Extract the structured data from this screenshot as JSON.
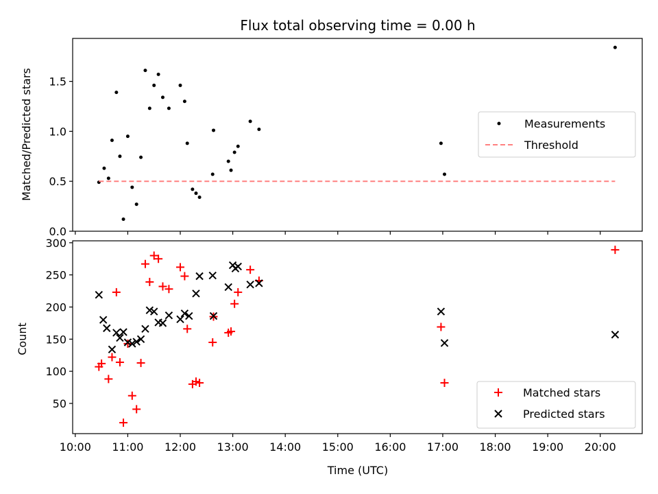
{
  "chart_data": [
    {
      "type": "scatter",
      "title": "Flux total observing time = 0.00 h",
      "ylabel": "Matched/Predicted stars",
      "xlabel": "",
      "ylim": [
        0,
        1.93
      ],
      "xlim": [
        "09:57",
        "20:48"
      ],
      "yticks": [
        0.0,
        0.5,
        1.0,
        1.5
      ],
      "ytick_labels": [
        "0.0",
        "0.5",
        "1.0",
        "1.5"
      ],
      "grid": false,
      "legend_position": "center-right",
      "series": [
        {
          "name": "Measurements",
          "color": "#000000",
          "marker": "dot",
          "points": [
            [
              "10:27",
              0.49
            ],
            [
              "10:33",
              0.63
            ],
            [
              "10:38",
              0.53
            ],
            [
              "10:42",
              0.91
            ],
            [
              "10:47",
              1.39
            ],
            [
              "10:51",
              0.75
            ],
            [
              "10:55",
              0.12
            ],
            [
              "11:00",
              0.95
            ],
            [
              "11:05",
              0.44
            ],
            [
              "11:10",
              0.27
            ],
            [
              "11:15",
              0.74
            ],
            [
              "11:20",
              1.61
            ],
            [
              "11:25",
              1.23
            ],
            [
              "11:30",
              1.46
            ],
            [
              "11:35",
              1.57
            ],
            [
              "11:40",
              1.34
            ],
            [
              "11:47",
              1.23
            ],
            [
              "12:00",
              1.46
            ],
            [
              "12:05",
              1.3
            ],
            [
              "12:08",
              0.88
            ],
            [
              "12:14",
              0.42
            ],
            [
              "12:18",
              0.38
            ],
            [
              "12:22",
              0.34
            ],
            [
              "12:37",
              0.57
            ],
            [
              "12:38",
              1.01
            ],
            [
              "12:55",
              0.7
            ],
            [
              "12:58",
              0.61
            ],
            [
              "13:02",
              0.79
            ],
            [
              "13:06",
              0.85
            ],
            [
              "13:20",
              1.1
            ],
            [
              "13:30",
              1.02
            ],
            [
              "16:58",
              0.88
            ],
            [
              "17:02",
              0.57
            ],
            [
              "20:17",
              1.84
            ]
          ]
        },
        {
          "name": "Threshold",
          "color": "#ff8080",
          "style": "dashed",
          "points": [
            [
              "10:27",
              0.5
            ],
            [
              "20:17",
              0.5
            ]
          ]
        }
      ]
    },
    {
      "type": "scatter",
      "title": "",
      "ylabel": "Count",
      "xlabel": "Time (UTC)",
      "ylim": [
        3,
        303
      ],
      "xlim": [
        "09:57",
        "20:48"
      ],
      "yticks": [
        50,
        100,
        150,
        200,
        250,
        300
      ],
      "ytick_labels": [
        "50",
        "100",
        "150",
        "200",
        "250",
        "300"
      ],
      "xtick_labels": [
        "10:00",
        "11:00",
        "12:00",
        "13:00",
        "14:00",
        "15:00",
        "16:00",
        "17:00",
        "18:00",
        "19:00",
        "20:00"
      ],
      "grid": false,
      "legend_position": "lower-right",
      "series": [
        {
          "name": "Matched stars",
          "color": "#ff0000",
          "marker": "plus",
          "points": [
            [
              "10:27",
              107
            ],
            [
              "10:30",
              112
            ],
            [
              "10:38",
              88
            ],
            [
              "10:42",
              122
            ],
            [
              "10:47",
              223
            ],
            [
              "10:51",
              114
            ],
            [
              "10:55",
              20
            ],
            [
              "11:00",
              143
            ],
            [
              "11:05",
              62
            ],
            [
              "11:10",
              41
            ],
            [
              "11:15",
              113
            ],
            [
              "11:20",
              267
            ],
            [
              "11:25",
              239
            ],
            [
              "11:30",
              280
            ],
            [
              "11:35",
              275
            ],
            [
              "11:40",
              232
            ],
            [
              "11:47",
              228
            ],
            [
              "12:00",
              262
            ],
            [
              "12:05",
              248
            ],
            [
              "12:08",
              166
            ],
            [
              "12:14",
              80
            ],
            [
              "12:18",
              84
            ],
            [
              "12:22",
              82
            ],
            [
              "12:37",
              145
            ],
            [
              "12:38",
              185
            ],
            [
              "12:55",
              160
            ],
            [
              "12:58",
              162
            ],
            [
              "13:02",
              205
            ],
            [
              "13:06",
              223
            ],
            [
              "13:20",
              258
            ],
            [
              "13:30",
              241
            ],
            [
              "16:58",
              169
            ],
            [
              "17:02",
              82
            ],
            [
              "20:17",
              289
            ]
          ]
        },
        {
          "name": "Predicted stars",
          "color": "#000000",
          "marker": "x",
          "points": [
            [
              "10:27",
              219
            ],
            [
              "10:32",
              180
            ],
            [
              "10:36",
              167
            ],
            [
              "10:42",
              134
            ],
            [
              "10:47",
              160
            ],
            [
              "10:51",
              152
            ],
            [
              "10:55",
              161
            ],
            [
              "11:00",
              145
            ],
            [
              "11:05",
              143
            ],
            [
              "11:10",
              146
            ],
            [
              "11:15",
              150
            ],
            [
              "11:20",
              166
            ],
            [
              "11:25",
              195
            ],
            [
              "11:30",
              193
            ],
            [
              "11:35",
              176
            ],
            [
              "11:40",
              175
            ],
            [
              "11:47",
              187
            ],
            [
              "12:00",
              181
            ],
            [
              "12:05",
              190
            ],
            [
              "12:10",
              186
            ],
            [
              "12:18",
              221
            ],
            [
              "12:22",
              248
            ],
            [
              "12:37",
              249
            ],
            [
              "12:38",
              186
            ],
            [
              "12:55",
              231
            ],
            [
              "13:00",
              265
            ],
            [
              "13:03",
              260
            ],
            [
              "13:06",
              263
            ],
            [
              "13:20",
              235
            ],
            [
              "13:30",
              237
            ],
            [
              "16:58",
              193
            ],
            [
              "17:02",
              144
            ],
            [
              "20:17",
              157
            ]
          ]
        }
      ]
    }
  ]
}
